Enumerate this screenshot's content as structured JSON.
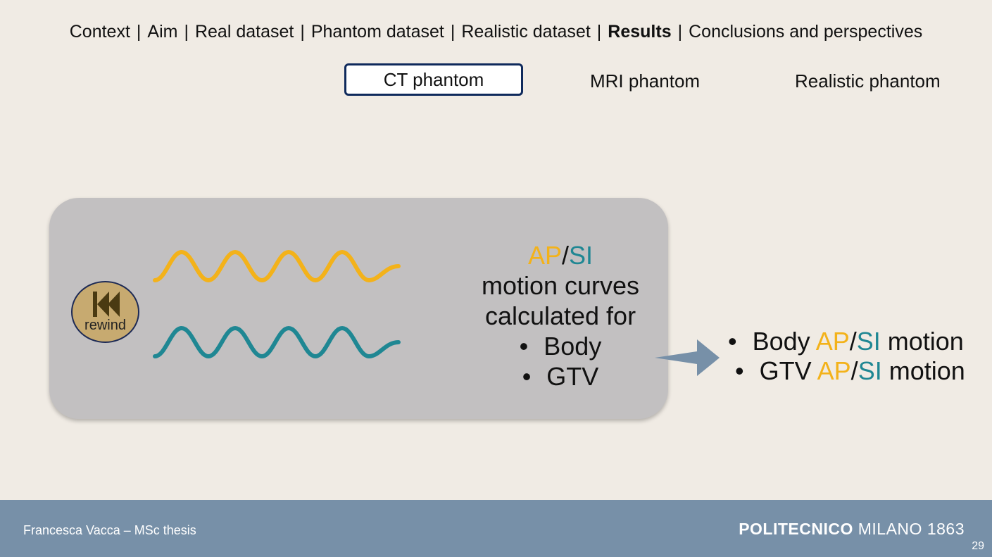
{
  "nav": {
    "items": [
      "Context",
      "Aim",
      "Real dataset",
      "Phantom dataset",
      "Realistic dataset",
      "Results",
      "Conclusions and perspectives"
    ],
    "separator": "|",
    "active": "Results"
  },
  "tabs": {
    "ct": "CT phantom",
    "mri": "MRI phantom",
    "realistic": "Realistic phantom"
  },
  "rewind": {
    "label": "rewind",
    "icon": "rewind-icon"
  },
  "panel": {
    "ap": "AP",
    "slash": "/",
    "si": "SI",
    "line1": "motion curves",
    "line2": "calculated for",
    "bullets": [
      "Body",
      "GTV"
    ]
  },
  "results": {
    "bullet": "•",
    "r1_prefix": "Body ",
    "r2_prefix": "GTV ",
    "suffix": " motion",
    "ap": "AP",
    "slash": "/",
    "si": "SI"
  },
  "colors": {
    "ap": "#f3b21a",
    "si": "#1f8793",
    "footer": "#7790a8",
    "tab_border": "#0f2a5c"
  },
  "footer": {
    "author": "Francesca Vacca – MSc thesis",
    "uni_bold": "POLITECNICO",
    "uni_rest": " MILANO 1863",
    "page": "29"
  }
}
